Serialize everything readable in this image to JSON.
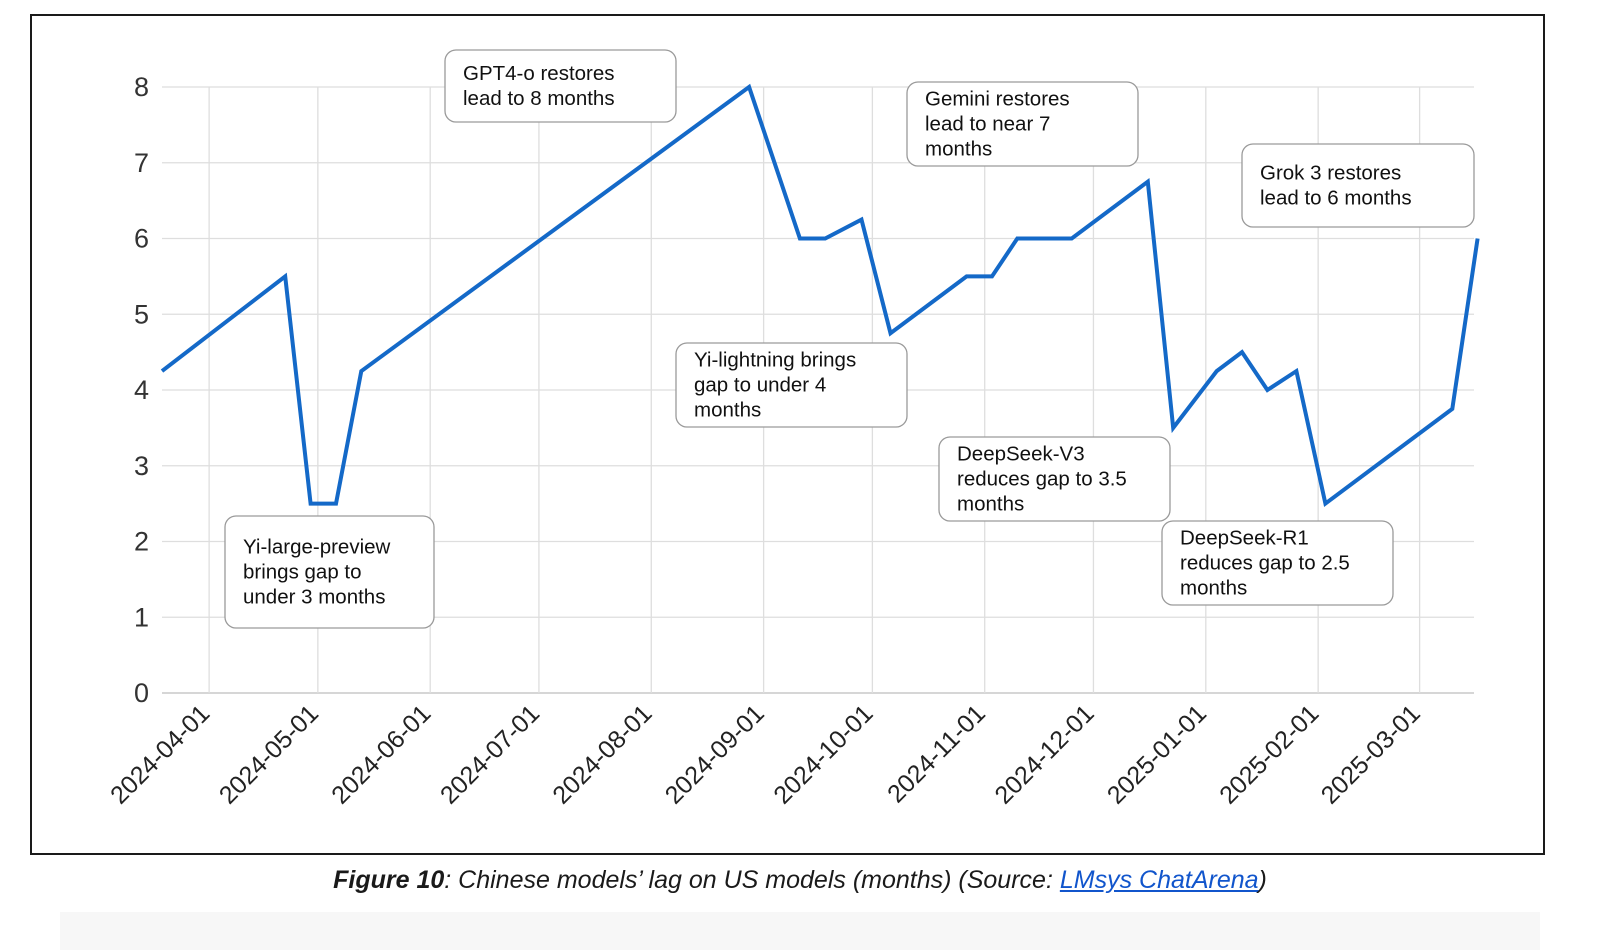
{
  "chart_data": {
    "type": "line",
    "title": "",
    "xlabel": "",
    "ylabel": "",
    "ylim": [
      0,
      8
    ],
    "xlim": [
      "2024-03-19",
      "2025-03-16"
    ],
    "grid": true,
    "legend": "none",
    "line_color": "#1469c8",
    "x_ticks": [
      "2024-04-01",
      "2024-05-01",
      "2024-06-01",
      "2024-07-01",
      "2024-08-01",
      "2024-09-01",
      "2024-10-01",
      "2024-11-01",
      "2024-12-01",
      "2025-01-01",
      "2025-02-01",
      "2025-03-01"
    ],
    "y_ticks": [
      0,
      1,
      2,
      3,
      4,
      5,
      6,
      7,
      8
    ],
    "series": [
      {
        "name": "",
        "x": [
          "2024-03-19",
          "2024-04-22",
          "2024-04-29",
          "2024-05-06",
          "2024-05-13",
          "2024-08-28",
          "2024-09-11",
          "2024-09-18",
          "2024-09-28",
          "2024-10-06",
          "2024-10-27",
          "2024-11-03",
          "2024-11-10",
          "2024-11-25",
          "2024-12-16",
          "2024-12-23",
          "2025-01-04",
          "2025-01-11",
          "2025-01-18",
          "2025-01-26",
          "2025-02-03",
          "2025-03-10",
          "2025-03-17"
        ],
        "y": [
          4.25,
          5.5,
          2.5,
          2.5,
          4.25,
          8,
          6,
          6,
          6.25,
          4.75,
          5.5,
          5.5,
          6,
          6,
          6.75,
          3.5,
          4.25,
          4.5,
          4,
          4.25,
          2.5,
          3.75,
          6
        ]
      }
    ],
    "annotations": [
      {
        "lines": [
          "GPT4-o restores",
          "lead to 8 months"
        ]
      },
      {
        "lines": [
          "Gemini restores",
          "lead to near 7",
          "months"
        ]
      },
      {
        "lines": [
          "Grok 3 restores",
          "lead to 6 months"
        ]
      },
      {
        "lines": [
          "Yi-lightning brings",
          "gap to under 4",
          "months"
        ]
      },
      {
        "lines": [
          "DeepSeek-V3",
          "reduces gap to 3.5",
          "months"
        ]
      },
      {
        "lines": [
          "Yi-large-preview",
          "brings gap to",
          "under 3 months"
        ]
      },
      {
        "lines": [
          "DeepSeek-R1",
          "reduces gap to 2.5",
          "months"
        ]
      }
    ]
  },
  "caption": {
    "label": "Figure 10",
    "text": ": Chinese models’ lag on US models (months) (Source: ",
    "link_text": "LMsys ChatArena",
    "end": ")"
  }
}
